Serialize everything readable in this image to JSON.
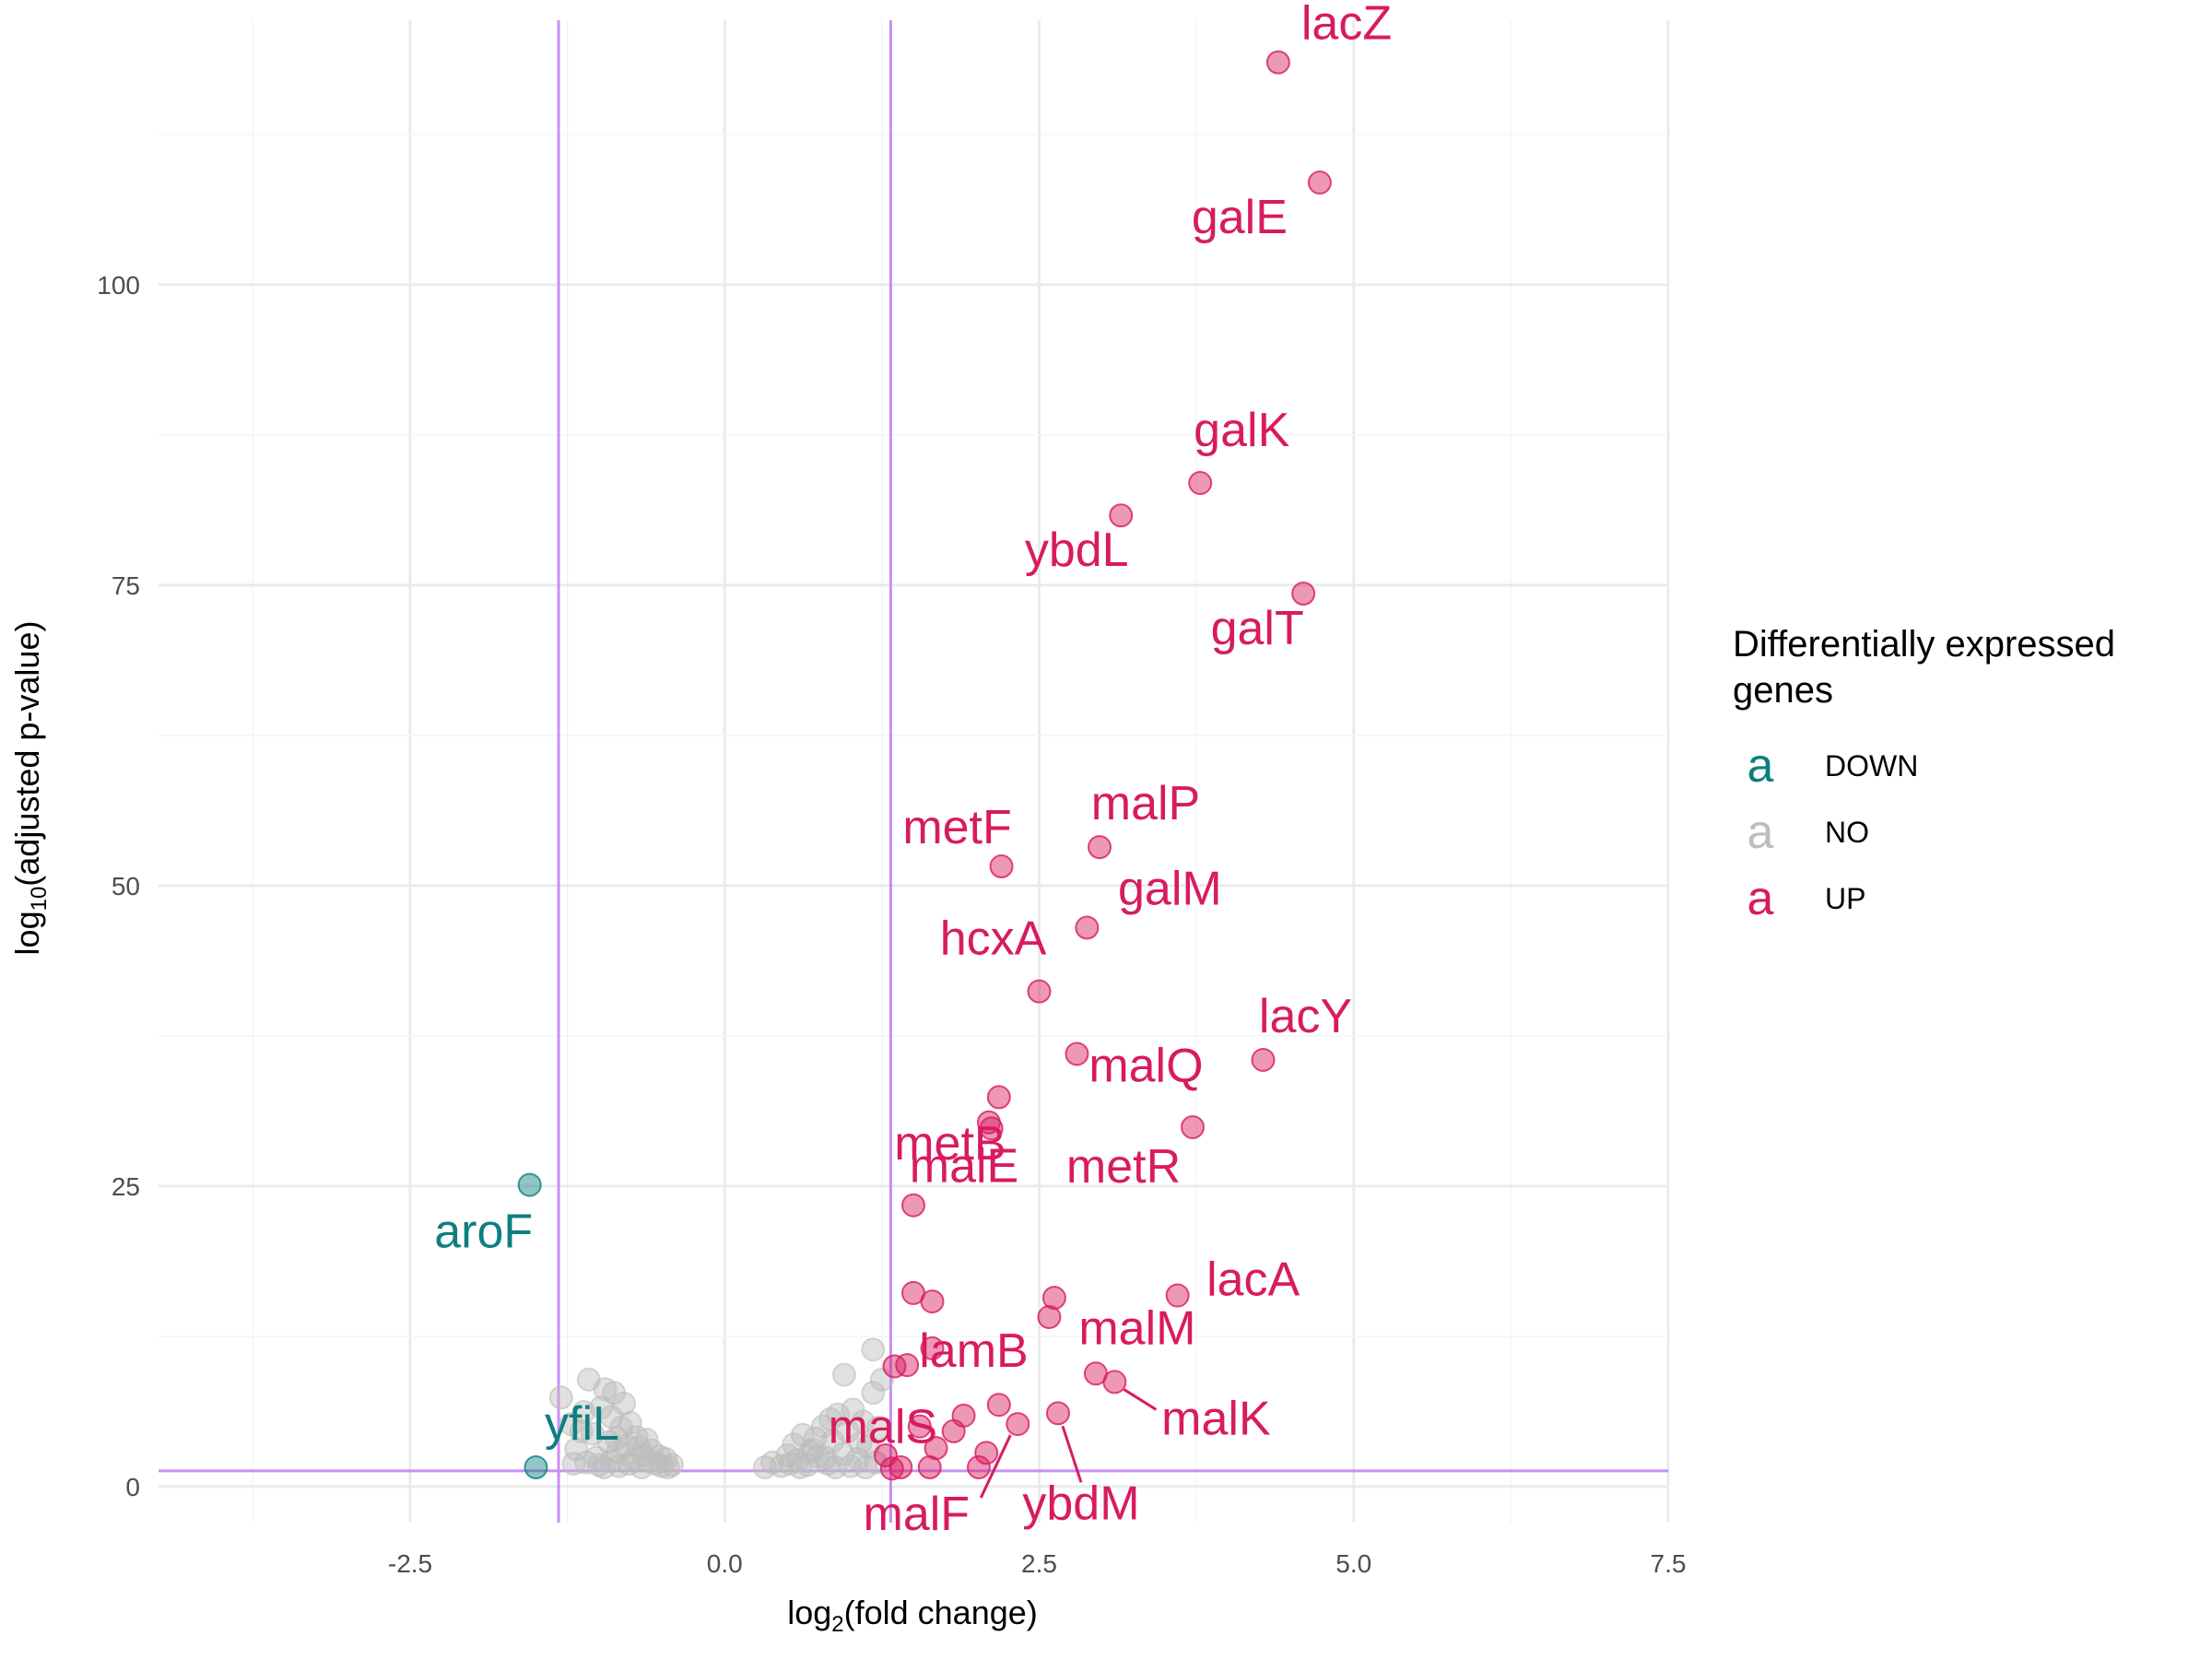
{
  "chart_data": {
    "type": "scatter",
    "title": "",
    "xlabel_base": "log",
    "xlabel_sub": "2",
    "xlabel_rest": "(fold change)",
    "ylabel_base": "log",
    "ylabel_sub": "10",
    "ylabel_rest": "(adjusted p-value)",
    "xlim": [
      -4.5,
      7.5
    ],
    "ylim": [
      -3,
      122
    ],
    "x_ticks": [
      -2.5,
      0.0,
      2.5,
      5.0,
      7.5
    ],
    "x_tick_labels": [
      "-2.5",
      "0.0",
      "2.5",
      "5.0",
      "7.5"
    ],
    "y_ticks": [
      0,
      25,
      50,
      75,
      100
    ],
    "y_tick_labels": [
      "0",
      "25",
      "50",
      "75",
      "100"
    ],
    "grid": true,
    "thresholds": {
      "x": [
        -1.32,
        1.32
      ],
      "y": 1.3,
      "color": "#c990f5"
    },
    "legend": {
      "title_line1": "Differentially expressed",
      "title_line2": "genes",
      "position": "right",
      "glyph": "a",
      "entries": [
        {
          "name": "DOWN",
          "color": "#0e7f7f"
        },
        {
          "name": "NO",
          "color": "#bdbdbd"
        },
        {
          "name": "UP",
          "color": "#d81b60"
        }
      ]
    },
    "colors": {
      "DOWN": "#0e7f7f",
      "NO": "#bdbdbd",
      "UP": "#d81b60"
    },
    "labeled_points": [
      {
        "gene": "lacZ",
        "x": 4.4,
        "y": 118.5,
        "group": "UP"
      },
      {
        "gene": "galE",
        "x": 4.73,
        "y": 108.5,
        "group": "UP"
      },
      {
        "gene": "galK",
        "x": 3.78,
        "y": 83.5,
        "group": "UP"
      },
      {
        "gene": "ybdL",
        "x": 3.15,
        "y": 80.8,
        "group": "UP"
      },
      {
        "gene": "galT",
        "x": 4.6,
        "y": 74.3,
        "group": "UP"
      },
      {
        "gene": "malP",
        "x": 2.98,
        "y": 53.2,
        "group": "UP"
      },
      {
        "gene": "metF",
        "x": 2.2,
        "y": 51.6,
        "group": "UP"
      },
      {
        "gene": "galM",
        "x": 2.88,
        "y": 46.5,
        "group": "UP"
      },
      {
        "gene": "hcxA",
        "x": 2.5,
        "y": 41.2,
        "group": "UP"
      },
      {
        "gene": "lacY",
        "x": 4.28,
        "y": 35.5,
        "group": "UP"
      },
      {
        "gene": "malQ",
        "x": 2.8,
        "y": 36.0,
        "group": "UP"
      },
      {
        "gene": "metB",
        "x": 2.1,
        "y": 30.3,
        "group": "UP"
      },
      {
        "gene": "metR",
        "x": 3.72,
        "y": 29.9,
        "group": "UP"
      },
      {
        "gene": "malE",
        "x": 1.5,
        "y": 23.4,
        "group": "UP"
      },
      {
        "gene": "lacA",
        "x": 3.6,
        "y": 15.9,
        "group": "UP"
      },
      {
        "gene": "lamB",
        "x": 1.65,
        "y": 11.5,
        "group": "UP"
      },
      {
        "gene": "malM",
        "x": 2.95,
        "y": 9.4,
        "group": "UP"
      },
      {
        "gene": "malK",
        "x": 3.1,
        "y": 8.7,
        "group": "UP"
      },
      {
        "gene": "malS",
        "x": 1.55,
        "y": 5.0,
        "group": "UP"
      },
      {
        "gene": "malF",
        "x": 2.33,
        "y": 5.2,
        "group": "UP"
      },
      {
        "gene": "ybdM",
        "x": 2.65,
        "y": 6.1,
        "group": "UP"
      },
      {
        "gene": "aroF",
        "x": -1.55,
        "y": 25.1,
        "group": "DOWN"
      },
      {
        "gene": "yfiL",
        "x": -1.5,
        "y": 1.6,
        "group": "DOWN"
      }
    ],
    "extra_up_points": [
      {
        "x": 2.18,
        "y": 32.4
      },
      {
        "x": 2.12,
        "y": 29.8
      },
      {
        "x": 1.5,
        "y": 16.1
      },
      {
        "x": 1.65,
        "y": 15.4
      },
      {
        "x": 2.62,
        "y": 15.7
      },
      {
        "x": 2.58,
        "y": 14.1
      },
      {
        "x": 1.45,
        "y": 10.1
      },
      {
        "x": 1.35,
        "y": 10.0
      },
      {
        "x": 2.18,
        "y": 6.8
      },
      {
        "x": 1.9,
        "y": 5.9
      },
      {
        "x": 1.82,
        "y": 4.6
      },
      {
        "x": 2.08,
        "y": 2.8
      },
      {
        "x": 1.68,
        "y": 3.2
      },
      {
        "x": 1.28,
        "y": 2.6
      },
      {
        "x": 1.4,
        "y": 1.6
      },
      {
        "x": 1.63,
        "y": 1.6
      },
      {
        "x": 2.02,
        "y": 1.6
      },
      {
        "x": 1.33,
        "y": 1.5
      }
    ],
    "ns_points": [
      {
        "x": -1.3,
        "y": 7.4
      },
      {
        "x": -1.22,
        "y": 5.2
      },
      {
        "x": -1.18,
        "y": 3.1
      },
      {
        "x": -1.12,
        "y": 6.2
      },
      {
        "x": -1.08,
        "y": 8.9
      },
      {
        "x": -1.05,
        "y": 4.4
      },
      {
        "x": -1.02,
        "y": 2.4
      },
      {
        "x": -0.98,
        "y": 6.6
      },
      {
        "x": -0.95,
        "y": 8.1
      },
      {
        "x": -0.92,
        "y": 3.7
      },
      {
        "x": -0.9,
        "y": 5.8
      },
      {
        "x": -0.88,
        "y": 7.8
      },
      {
        "x": -0.85,
        "y": 2.9
      },
      {
        "x": -0.82,
        "y": 4.9
      },
      {
        "x": -0.8,
        "y": 6.9
      },
      {
        "x": -0.78,
        "y": 3.4
      },
      {
        "x": -0.75,
        "y": 5.3
      },
      {
        "x": -0.72,
        "y": 2.2
      },
      {
        "x": -0.7,
        "y": 4.1
      },
      {
        "x": -0.68,
        "y": 3.3
      },
      {
        "x": -0.65,
        "y": 2.6
      },
      {
        "x": -0.62,
        "y": 3.9
      },
      {
        "x": -0.6,
        "y": 2.1
      },
      {
        "x": -0.58,
        "y": 3.0
      },
      {
        "x": -0.55,
        "y": 1.9
      },
      {
        "x": -0.52,
        "y": 2.5
      },
      {
        "x": -0.5,
        "y": 1.7
      },
      {
        "x": -0.47,
        "y": 2.3
      },
      {
        "x": -0.45,
        "y": 1.6
      },
      {
        "x": -0.42,
        "y": 1.8
      },
      {
        "x": -1.2,
        "y": 1.9
      },
      {
        "x": -1.1,
        "y": 2.0
      },
      {
        "x": -1.0,
        "y": 1.8
      },
      {
        "x": -0.96,
        "y": 1.6
      },
      {
        "x": -0.9,
        "y": 2.1
      },
      {
        "x": -0.84,
        "y": 1.7
      },
      {
        "x": -0.76,
        "y": 1.9
      },
      {
        "x": -0.66,
        "y": 1.6
      },
      {
        "x": -0.86,
        "y": 4.0
      },
      {
        "x": -1.14,
        "y": 4.6
      },
      {
        "x": 0.32,
        "y": 1.6
      },
      {
        "x": 0.38,
        "y": 2.0
      },
      {
        "x": 0.45,
        "y": 1.7
      },
      {
        "x": 0.5,
        "y": 2.6
      },
      {
        "x": 0.55,
        "y": 3.5
      },
      {
        "x": 0.58,
        "y": 2.2
      },
      {
        "x": 0.62,
        "y": 4.3
      },
      {
        "x": 0.66,
        "y": 1.8
      },
      {
        "x": 0.7,
        "y": 3.1
      },
      {
        "x": 0.74,
        "y": 2.5
      },
      {
        "x": 0.78,
        "y": 5.0
      },
      {
        "x": 0.82,
        "y": 1.9
      },
      {
        "x": 0.86,
        "y": 3.8
      },
      {
        "x": 0.9,
        "y": 6.0
      },
      {
        "x": 0.94,
        "y": 2.7
      },
      {
        "x": 0.98,
        "y": 4.6
      },
      {
        "x": 1.02,
        "y": 6.4
      },
      {
        "x": 1.06,
        "y": 2.3
      },
      {
        "x": 1.1,
        "y": 5.4
      },
      {
        "x": 1.14,
        "y": 3.3
      },
      {
        "x": 1.18,
        "y": 7.8
      },
      {
        "x": 1.2,
        "y": 2.0
      },
      {
        "x": 1.22,
        "y": 4.9
      },
      {
        "x": 1.25,
        "y": 8.9
      },
      {
        "x": 0.95,
        "y": 9.3
      },
      {
        "x": 1.18,
        "y": 11.4
      },
      {
        "x": 0.88,
        "y": 1.6
      },
      {
        "x": 0.6,
        "y": 1.6
      },
      {
        "x": 0.68,
        "y": 2.9
      },
      {
        "x": 1.0,
        "y": 1.7
      },
      {
        "x": 1.12,
        "y": 1.6
      },
      {
        "x": 0.8,
        "y": 2.4
      },
      {
        "x": 0.52,
        "y": 1.9
      },
      {
        "x": 0.72,
        "y": 4.0
      },
      {
        "x": 1.08,
        "y": 3.6
      },
      {
        "x": 0.84,
        "y": 5.6
      }
    ]
  }
}
